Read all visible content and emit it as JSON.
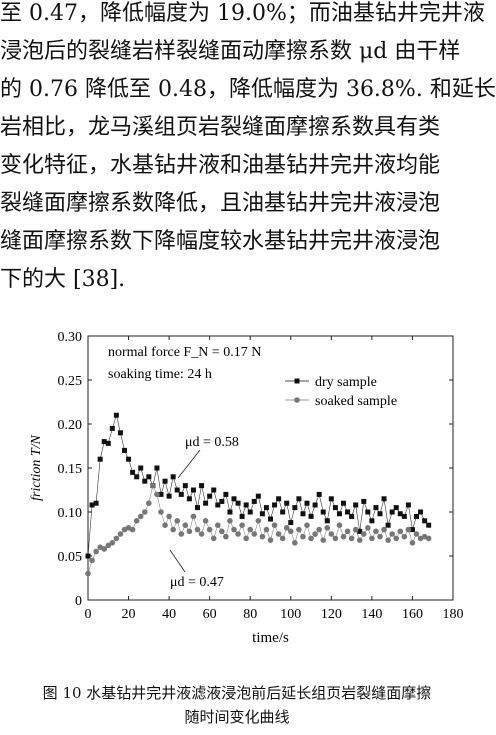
{
  "paragraph": {
    "lines": [
      "至 0.47，降低幅度为 19.0%；而油基钻井完井液",
      "浸泡后的裂缝岩样裂缝面动摩擦系数 μd 由干样",
      "的 0.76 降低至 0.48，降低幅度为 36.8%. 和延长",
      "岩相比，龙马溪组页岩裂缝面摩擦系数具有类",
      "变化特征，水基钻井液和油基钻井完井液均能",
      "裂缝面摩擦系数降低，且油基钻井完井液浸泡",
      "缝面摩擦系数下降幅度较水基钻井完井液浸泡",
      "下的大 [38]."
    ]
  },
  "chart_data": {
    "type": "scatter",
    "xlabel": "time/s",
    "ylabel": "friction T/N",
    "xlim": [
      0,
      180
    ],
    "ylim": [
      0,
      0.3
    ],
    "xticks": [
      "0",
      "20",
      "40",
      "60",
      "80",
      "100",
      "120",
      "140",
      "160",
      "180"
    ],
    "yticks": [
      "0",
      "0.05",
      "0.10",
      "0.15",
      "0.20",
      "0.25",
      "0.30"
    ],
    "annotations": {
      "normal_force": "normal force F_N = 0.17 N",
      "soaking_time": "soaking time: 24 h",
      "mu_dry": "μd = 0.58",
      "mu_soaked": "μd = 0.47"
    },
    "legend_position": "top-right",
    "series": [
      {
        "name": "dry sample",
        "marker": "square",
        "color": "#111111",
        "x": [
          0,
          2,
          4,
          6,
          8,
          10,
          12,
          14,
          16,
          18,
          20,
          22,
          24,
          26,
          28,
          30,
          32,
          34,
          36,
          38,
          40,
          42,
          44,
          46,
          48,
          50,
          52,
          54,
          56,
          58,
          60,
          62,
          64,
          66,
          68,
          70,
          72,
          74,
          76,
          78,
          80,
          82,
          84,
          86,
          88,
          90,
          92,
          94,
          96,
          98,
          100,
          102,
          104,
          106,
          108,
          110,
          112,
          114,
          116,
          118,
          120,
          122,
          124,
          126,
          128,
          130,
          132,
          134,
          136,
          138,
          140,
          142,
          144,
          146,
          148,
          150,
          152,
          154,
          156,
          158,
          160,
          162,
          164,
          166,
          168
        ],
        "y": [
          0.05,
          0.108,
          0.11,
          0.16,
          0.18,
          0.178,
          0.195,
          0.21,
          0.19,
          0.17,
          0.16,
          0.145,
          0.14,
          0.15,
          0.135,
          0.14,
          0.13,
          0.15,
          0.12,
          0.135,
          0.118,
          0.14,
          0.125,
          0.12,
          0.13,
          0.115,
          0.125,
          0.105,
          0.13,
          0.11,
          0.118,
          0.125,
          0.108,
          0.112,
          0.12,
          0.1,
          0.115,
          0.11,
          0.095,
          0.108,
          0.1,
          0.112,
          0.118,
          0.098,
          0.105,
          0.092,
          0.108,
          0.115,
          0.1,
          0.11,
          0.088,
          0.105,
          0.115,
          0.098,
          0.11,
          0.095,
          0.108,
          0.12,
          0.1,
          0.09,
          0.115,
          0.105,
          0.098,
          0.11,
          0.1,
          0.095,
          0.108,
          0.078,
          0.112,
          0.1,
          0.09,
          0.105,
          0.098,
          0.115,
          0.085,
          0.1,
          0.105,
          0.098,
          0.095,
          0.108,
          0.08,
          0.095,
          0.1,
          0.09,
          0.085
        ]
      },
      {
        "name": "soaked sample",
        "marker": "circle",
        "color": "#777777",
        "x": [
          0,
          2,
          4,
          6,
          8,
          10,
          12,
          14,
          16,
          18,
          20,
          22,
          24,
          26,
          28,
          30,
          32,
          34,
          36,
          38,
          40,
          42,
          44,
          46,
          48,
          50,
          52,
          54,
          56,
          58,
          60,
          62,
          64,
          66,
          68,
          70,
          72,
          74,
          76,
          78,
          80,
          82,
          84,
          86,
          88,
          90,
          92,
          94,
          96,
          98,
          100,
          102,
          104,
          106,
          108,
          110,
          112,
          114,
          116,
          118,
          120,
          122,
          124,
          126,
          128,
          130,
          132,
          134,
          136,
          138,
          140,
          142,
          144,
          146,
          148,
          150,
          152,
          154,
          156,
          158,
          160,
          162,
          164,
          166,
          168
        ],
        "y": [
          0.03,
          0.045,
          0.055,
          0.06,
          0.058,
          0.062,
          0.065,
          0.07,
          0.075,
          0.08,
          0.082,
          0.08,
          0.09,
          0.095,
          0.1,
          0.11,
          0.13,
          0.12,
          0.1,
          0.085,
          0.095,
          0.08,
          0.09,
          0.075,
          0.085,
          0.078,
          0.095,
          0.08,
          0.075,
          0.09,
          0.08,
          0.07,
          0.085,
          0.078,
          0.072,
          0.09,
          0.08,
          0.075,
          0.085,
          0.07,
          0.08,
          0.075,
          0.09,
          0.072,
          0.08,
          0.068,
          0.085,
          0.075,
          0.07,
          0.082,
          0.078,
          0.065,
          0.08,
          0.072,
          0.085,
          0.07,
          0.075,
          0.08,
          0.068,
          0.082,
          0.075,
          0.07,
          0.085,
          0.072,
          0.078,
          0.07,
          0.08,
          0.068,
          0.075,
          0.082,
          0.07,
          0.078,
          0.072,
          0.08,
          0.068,
          0.075,
          0.07,
          0.078,
          0.072,
          0.08,
          0.065,
          0.075,
          0.07,
          0.072,
          0.07
        ]
      }
    ]
  },
  "caption": {
    "line1": "图 10  水基钻井完井液滤液浸泡前后延长组页岩裂缝面摩擦",
    "line2": "随时间变化曲线"
  }
}
